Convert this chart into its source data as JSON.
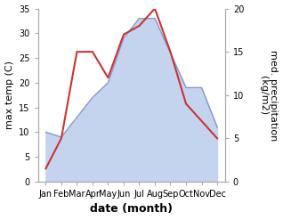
{
  "months": [
    "Jan",
    "Feb",
    "Mar",
    "Apr",
    "May",
    "Jun",
    "Jul",
    "Aug",
    "Sep",
    "Oct",
    "Nov",
    "Dec"
  ],
  "month_positions": [
    1,
    2,
    3,
    4,
    5,
    6,
    7,
    8,
    9,
    10,
    11,
    12
  ],
  "max_temp": [
    10,
    9,
    13,
    17,
    20,
    29,
    33,
    33,
    26,
    19,
    19,
    11
  ],
  "med_precip": [
    1.5,
    5,
    15,
    15,
    12,
    17,
    18,
    20,
    15,
    9,
    7,
    5
  ],
  "temp_color_fill": "#c5d4ee",
  "temp_color_line": "#8899cc",
  "precip_color": "#cc3333",
  "temp_ylim": [
    0,
    35
  ],
  "precip_ylim": [
    0,
    20
  ],
  "temp_yticks": [
    0,
    5,
    10,
    15,
    20,
    25,
    30,
    35
  ],
  "precip_yticks": [
    0,
    5,
    10,
    15,
    20
  ],
  "ylabel_left": "max temp (C)",
  "ylabel_right": "med. precipitation\n(kg/m2)",
  "xlabel": "date (month)",
  "spine_color": "#aaaaaa",
  "background_color": "#ffffff",
  "tick_labelsize": 7,
  "ylabel_fontsize": 8,
  "xlabel_fontsize": 9
}
